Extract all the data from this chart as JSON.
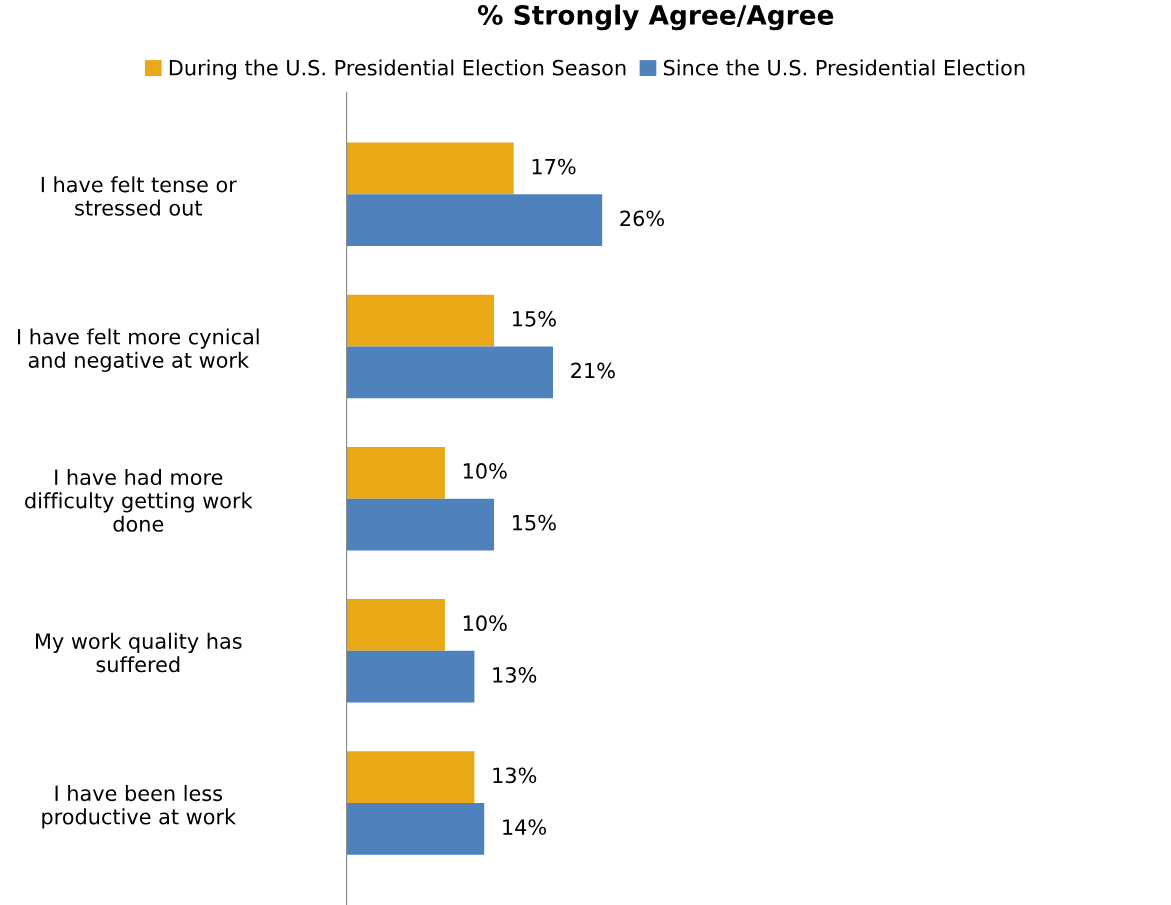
{
  "chart_data": {
    "type": "bar",
    "orientation": "horizontal",
    "title": "% Strongly Agree/Agree",
    "categories": [
      "I have felt tense or\nstressed out",
      "I have felt more cynical\nand negative at work",
      "I have had more\ndifficulty getting work\ndone",
      "My work quality has\nsuffered",
      "I have been less\nproductive at work"
    ],
    "series": [
      {
        "name": "During the U.S. Presidential Election Season",
        "color": "#e9a916",
        "values": [
          17,
          15,
          10,
          10,
          13
        ],
        "value_labels": [
          "17%",
          "15%",
          "10%",
          "10%",
          "13%"
        ]
      },
      {
        "name": "Since the U.S. Presidential Election",
        "color": "#4f81bd",
        "values": [
          26,
          21,
          15,
          13,
          14
        ],
        "value_labels": [
          "26%",
          "21%",
          "15%",
          "13%",
          "14%"
        ]
      }
    ],
    "tick_labels": "y",
    "legend": "top",
    "grid": false
  }
}
